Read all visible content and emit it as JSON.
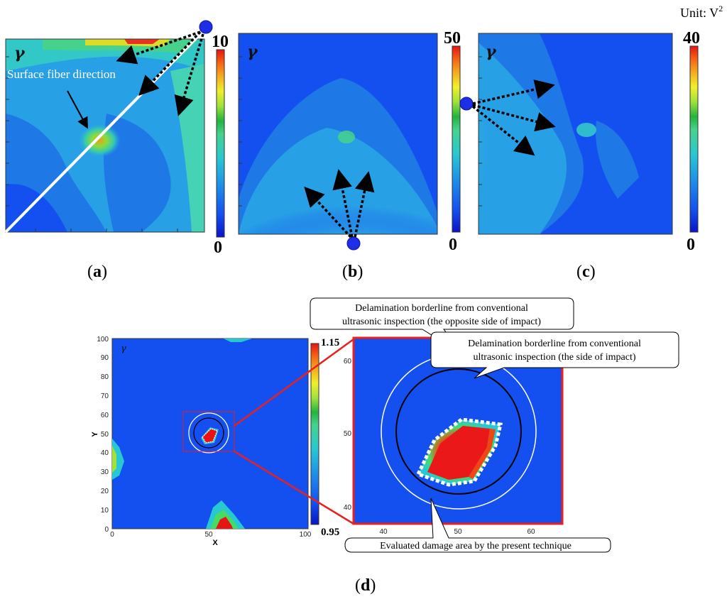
{
  "figure": {
    "unit_label": "Unit: V",
    "unit_sup": "2",
    "panels": [
      {
        "label_pre": "(",
        "label_letter": "a",
        "label_post": ")",
        "cb_max": "10",
        "cb_min": "0",
        "gamma": "γ"
      },
      {
        "label_pre": "(",
        "label_letter": "b",
        "label_post": ")",
        "cb_max": "50",
        "cb_min": "0",
        "gamma": "γ"
      },
      {
        "label_pre": "(",
        "label_letter": "c",
        "label_post": ")",
        "cb_max": "40",
        "cb_min": "0",
        "gamma": "γ"
      }
    ],
    "annotation_fiber": "Surface fiber direction",
    "panel_d": {
      "label_pre": "(",
      "label_letter": "d",
      "label_post": ")",
      "gamma": "γ",
      "cb_max": "1.15",
      "cb_min": "0.95",
      "xlabel": "X",
      "ylabel": "Y",
      "x_ticks": [
        "0",
        "50",
        "100"
      ],
      "y_ticks": [
        "0",
        "10",
        "20",
        "30",
        "40",
        "50",
        "60",
        "70",
        "80",
        "90",
        "100"
      ],
      "zoom_y_ticks": [
        "60",
        "50",
        "40"
      ],
      "zoom_x_ticks": [
        "40",
        "50",
        "60"
      ],
      "callouts": {
        "opposite_line1": "Delamination borderline from conventional",
        "opposite_line2": "ultrasonic inspection (the opposite side of impact)",
        "impact_line1": "Delamination borderline from conventional",
        "impact_line2": "ultrasonic inspection (the side of impact)",
        "damage": "Evaluated damage area by the present technique"
      }
    },
    "colors": {
      "background_blue": "#1450f0",
      "border_red": "#e8201e"
    }
  }
}
